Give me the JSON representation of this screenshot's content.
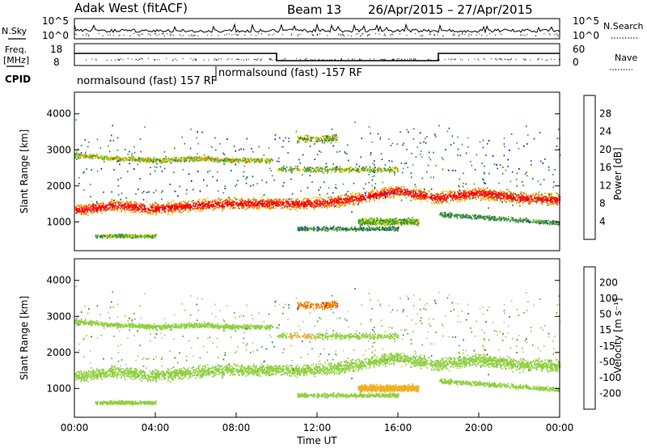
{
  "header": {
    "station": "Adak West (fitACF)",
    "beam": "Beam 13",
    "date_range": "26/Apr/2015 – 27/Apr/2015"
  },
  "summary_panels": {
    "nsky_label": "N.Sky",
    "nsearch_label": "N.Search",
    "freq_label_line1": "Freq.",
    "freq_label_line2": "[MHz]",
    "nave_label": "Nave",
    "cpid_label": "CPID",
    "noise_ticks_left": [
      "10^5",
      "10^0"
    ],
    "noise_ticks_right": [
      "10^5",
      "10^0"
    ],
    "freq_ticks": [
      "18",
      "8"
    ],
    "nave_ticks": [
      "60",
      "0"
    ]
  },
  "cpid_segments": [
    {
      "text": "normalsound (fast) 157 RF",
      "start_hour": 0
    },
    {
      "text": "normalsound (fast) -157 RF",
      "start_hour": 10
    }
  ],
  "colors": {
    "power_scale": [
      "#0000ff",
      "#1e3fa8",
      "#2a7a3e",
      "#3fa040",
      "#6cc02a",
      "#e8e000",
      "#f0a800",
      "#f07000",
      "#f02800",
      "#ff0000"
    ],
    "velocity_scale": [
      "#1010c0",
      "#2050a0",
      "#207a40",
      "#40b040",
      "#90d040",
      "#bebebe",
      "#f0b020",
      "#f08000",
      "#f04000",
      "#e00000"
    ]
  },
  "chart_data": [
    {
      "type": "heatmap",
      "panel": "power",
      "ylabel": "Slant Range [km]",
      "ylim": [
        200,
        4600
      ],
      "yticks": [
        "4000",
        "3000",
        "2000",
        "1000"
      ],
      "xlim": [
        0,
        24
      ],
      "colorbar_label": "Power [dB]",
      "colorbar_ticks": [
        "28",
        "24",
        "20",
        "16",
        "12",
        "8",
        "4"
      ],
      "features": [
        {
          "name": "main band",
          "x": [
            0,
            2,
            4,
            6,
            8,
            10,
            12,
            14,
            16,
            18,
            20,
            22,
            24
          ],
          "y": [
            1300,
            1450,
            1350,
            1450,
            1500,
            1500,
            1500,
            1650,
            1850,
            1650,
            1800,
            1650,
            1600
          ]
        },
        {
          "name": "far band",
          "x": [
            0,
            2,
            4,
            6,
            8,
            10
          ],
          "y": [
            2850,
            2750,
            2700,
            2750,
            2700,
            2700
          ]
        }
      ]
    },
    {
      "type": "heatmap",
      "panel": "velocity",
      "ylabel": "Slant Range [km]",
      "ylim": [
        200,
        4600
      ],
      "yticks": [
        "4000",
        "3000",
        "2000",
        "1000"
      ],
      "xlim": [
        0,
        24
      ],
      "xticks": [
        "00:00",
        "04:00",
        "08:00",
        "12:00",
        "16:00",
        "20:00",
        "00:00"
      ],
      "xlabel": "Time UT",
      "colorbar_label": "Velocity [m s⁻¹]",
      "colorbar_ticks": [
        "200",
        "100",
        "50",
        "15",
        "-15",
        "-50",
        "-100",
        "-200"
      ]
    }
  ]
}
